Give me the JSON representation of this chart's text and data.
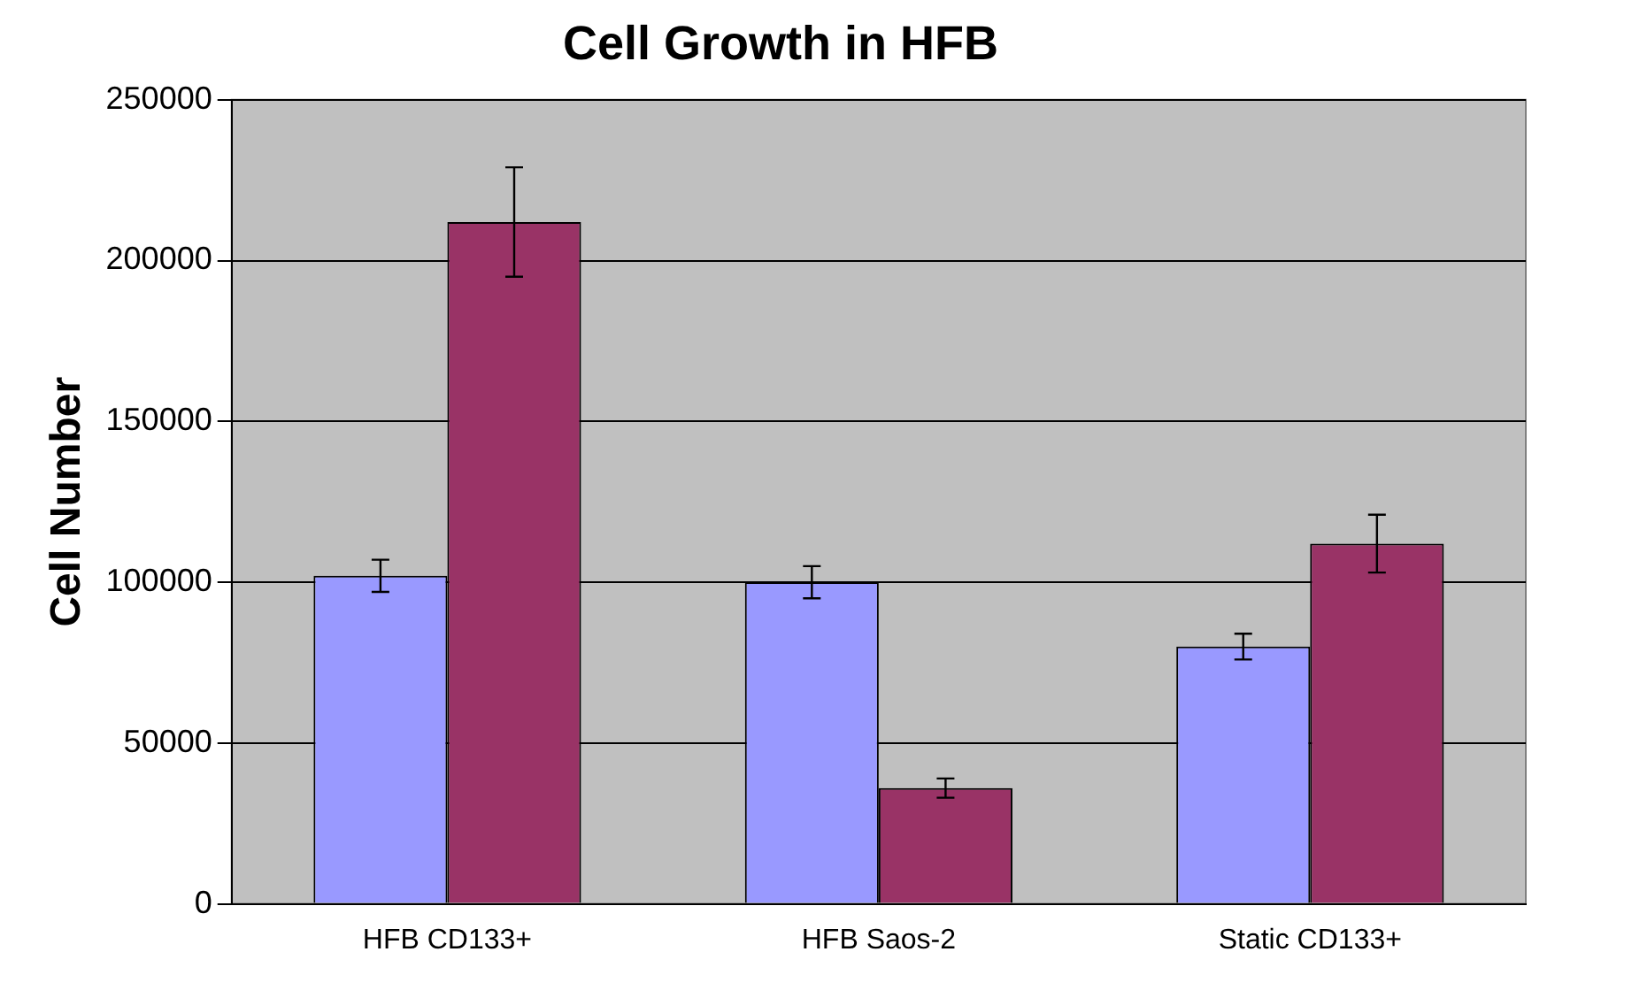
{
  "chart_data": {
    "type": "bar",
    "title": "Cell Growth in HFB",
    "ylabel": "Cell Number",
    "categories": [
      "HFB CD133+",
      "HFB Saos-2",
      "Static CD133+"
    ],
    "series": [
      {
        "color": "#9999ff",
        "values": [
          102000,
          100000,
          80000
        ],
        "errors": [
          5000,
          5000,
          4000
        ]
      },
      {
        "color": "#993366",
        "values": [
          212000,
          36000,
          112000
        ],
        "errors": [
          17000,
          3000,
          9000
        ]
      }
    ],
    "ylim": [
      0,
      250000
    ],
    "yticks": [
      0,
      50000,
      100000,
      150000,
      200000,
      250000
    ],
    "grid": "y",
    "legend": false
  }
}
